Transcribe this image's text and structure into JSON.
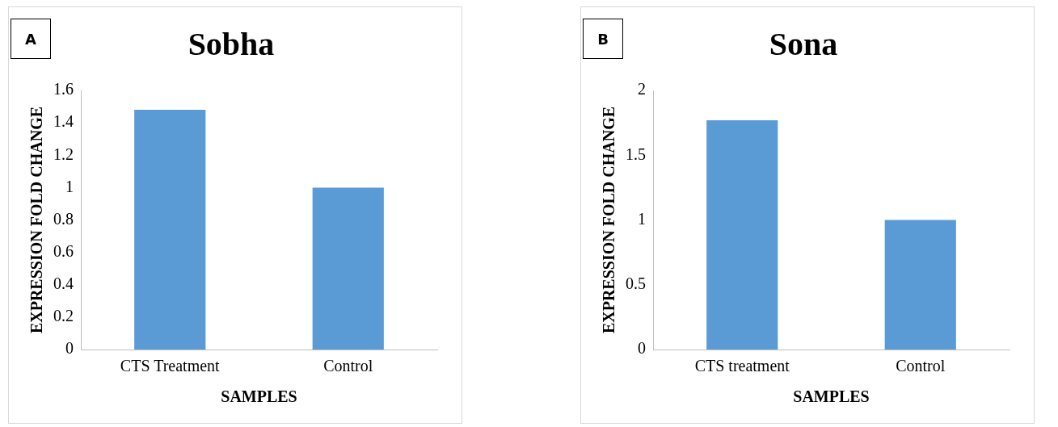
{
  "chart_data": [
    {
      "type": "bar",
      "title": "Sobha",
      "xlabel": "SAMPLES",
      "ylabel": "EXPRESSION FOLD CHANGE",
      "categories": [
        "CTS Treatment",
        "Control"
      ],
      "values": [
        1.48,
        1.0
      ],
      "color": "#5b9bd5",
      "ylim": [
        0,
        1.6
      ],
      "yticks": [
        0,
        0.2,
        0.4,
        0.6,
        0.8,
        1,
        1.2,
        1.4,
        1.6
      ],
      "grid": false,
      "legend": false,
      "annotations": [
        "A"
      ]
    },
    {
      "type": "bar",
      "title": "Sona",
      "xlabel": "SAMPLES",
      "ylabel": "EXPRESSION FOLD CHANGE",
      "categories": [
        "CTS treatment",
        "Control"
      ],
      "values": [
        1.77,
        1.0
      ],
      "color": "#5b9bd5",
      "ylim": [
        0,
        2
      ],
      "yticks": [
        0,
        0.5,
        1,
        1.5,
        2
      ],
      "grid": false,
      "legend": false,
      "annotations": [
        "B"
      ]
    }
  ]
}
